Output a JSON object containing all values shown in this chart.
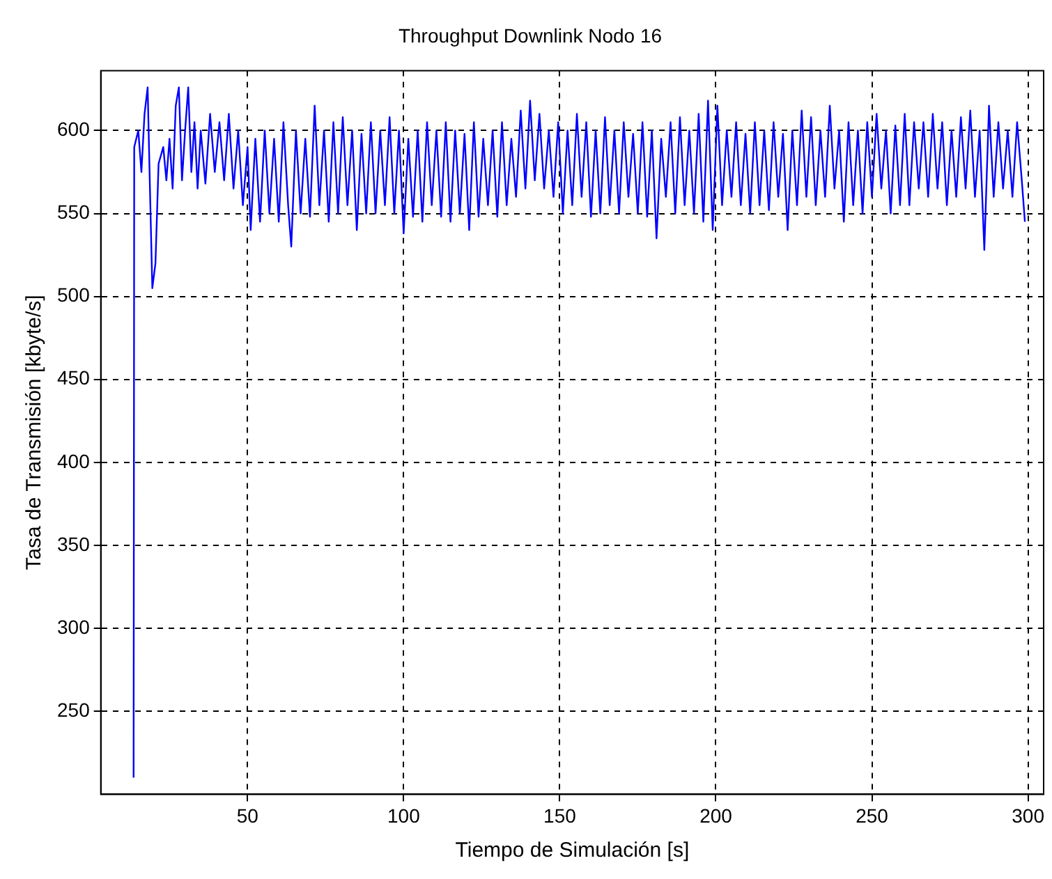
{
  "chart_data": {
    "type": "line",
    "title": "Throughput Downlink Nodo 16",
    "xlabel": "Tiempo de Simulación [s]",
    "ylabel": "Tasa de Transmisión [kbyte/s]",
    "xlim": [
      3,
      305
    ],
    "xticks": [
      50,
      100,
      150,
      200,
      250,
      300
    ],
    "ylim": [
      200,
      636
    ],
    "yticks": [
      250,
      300,
      350,
      400,
      450,
      500,
      550,
      600
    ],
    "grid": true,
    "legend": false,
    "marker": "none",
    "line_style": "solid",
    "series": [
      {
        "color": "#0000ff",
        "x": [
          13.5,
          13.7,
          15,
          16,
          17,
          18,
          18.8,
          19.5,
          20.5,
          21.5,
          23,
          24,
          25,
          26,
          27,
          28,
          29,
          30,
          31,
          32,
          33,
          34,
          35,
          36.5,
          38,
          39.5,
          41,
          42.5,
          44,
          45.5,
          47,
          48.5,
          50,
          51,
          52.5,
          54,
          55.5,
          57,
          58.5,
          60,
          61.5,
          63,
          64,
          65.5,
          67,
          68.5,
          70,
          71.5,
          73,
          74.5,
          76,
          77.5,
          79,
          80.5,
          82,
          83.5,
          85,
          86.5,
          88,
          89.5,
          91,
          92.5,
          94,
          95.5,
          97,
          98.5,
          100,
          101.5,
          103,
          104.5,
          106,
          107.5,
          109,
          110.5,
          112,
          113.5,
          115,
          116.5,
          118,
          119.5,
          121,
          122.5,
          124,
          125.5,
          127,
          128.5,
          130,
          131.5,
          133,
          134.5,
          136,
          137.5,
          139,
          140.5,
          142,
          143.5,
          145,
          146.5,
          148,
          149.5,
          151,
          152.5,
          154,
          155.5,
          157,
          158.5,
          160,
          161.5,
          163,
          164.5,
          166,
          167.5,
          169,
          170.5,
          172,
          173.5,
          175,
          176.5,
          178,
          179.5,
          181,
          182.5,
          184,
          185.5,
          187,
          188.5,
          190,
          191.5,
          193,
          194.5,
          196,
          197.5,
          199,
          200.5,
          202,
          203.5,
          205,
          206.5,
          208,
          209.5,
          211,
          212.5,
          214,
          215.5,
          217,
          218.5,
          220,
          221.5,
          223,
          224.5,
          226,
          227.5,
          229,
          230.5,
          232,
          233.5,
          235,
          236.5,
          238,
          239.5,
          241,
          242.5,
          244,
          245.5,
          247,
          248.5,
          250,
          251.5,
          253,
          254.5,
          256,
          257.5,
          259,
          260.5,
          262,
          263.5,
          265,
          266.5,
          268,
          269.5,
          271,
          272.5,
          274,
          275.5,
          277,
          278.5,
          280,
          281.5,
          283,
          284.5,
          286,
          287.5,
          289,
          290.5,
          292,
          293.5,
          295,
          296.5,
          298,
          299
        ],
        "values": [
          210,
          590,
          600,
          575,
          610,
          626,
          560,
          505,
          520,
          580,
          590,
          570,
          595,
          565,
          615,
          626,
          570,
          600,
          626,
          575,
          605,
          565,
          600,
          568,
          610,
          575,
          605,
          570,
          610,
          565,
          600,
          555,
          590,
          540,
          595,
          545,
          600,
          550,
          595,
          545,
          605,
          555,
          530,
          600,
          550,
          595,
          548,
          615,
          555,
          600,
          545,
          605,
          550,
          608,
          555,
          600,
          540,
          598,
          550,
          605,
          550,
          600,
          555,
          608,
          550,
          600,
          538,
          595,
          548,
          600,
          545,
          605,
          555,
          600,
          548,
          605,
          545,
          600,
          550,
          598,
          540,
          605,
          548,
          595,
          555,
          600,
          548,
          605,
          555,
          595,
          560,
          612,
          565,
          618,
          570,
          610,
          565,
          600,
          560,
          605,
          550,
          600,
          555,
          610,
          560,
          605,
          548,
          600,
          550,
          608,
          555,
          600,
          550,
          605,
          560,
          598,
          550,
          605,
          548,
          600,
          535,
          595,
          560,
          605,
          550,
          608,
          555,
          600,
          550,
          610,
          545,
          618,
          540,
          615,
          555,
          600,
          560,
          605,
          555,
          598,
          550,
          605,
          555,
          600,
          552,
          605,
          560,
          598,
          540,
          600,
          555,
          612,
          560,
          608,
          555,
          600,
          560,
          615,
          565,
          600,
          545,
          605,
          555,
          600,
          550,
          605,
          560,
          610,
          565,
          600,
          550,
          603,
          555,
          610,
          555,
          605,
          565,
          605,
          560,
          610,
          565,
          605,
          555,
          600,
          560,
          608,
          565,
          612,
          560,
          600,
          528,
          615,
          560,
          605,
          565,
          600,
          560,
          605,
          570,
          545
        ]
      }
    ]
  }
}
